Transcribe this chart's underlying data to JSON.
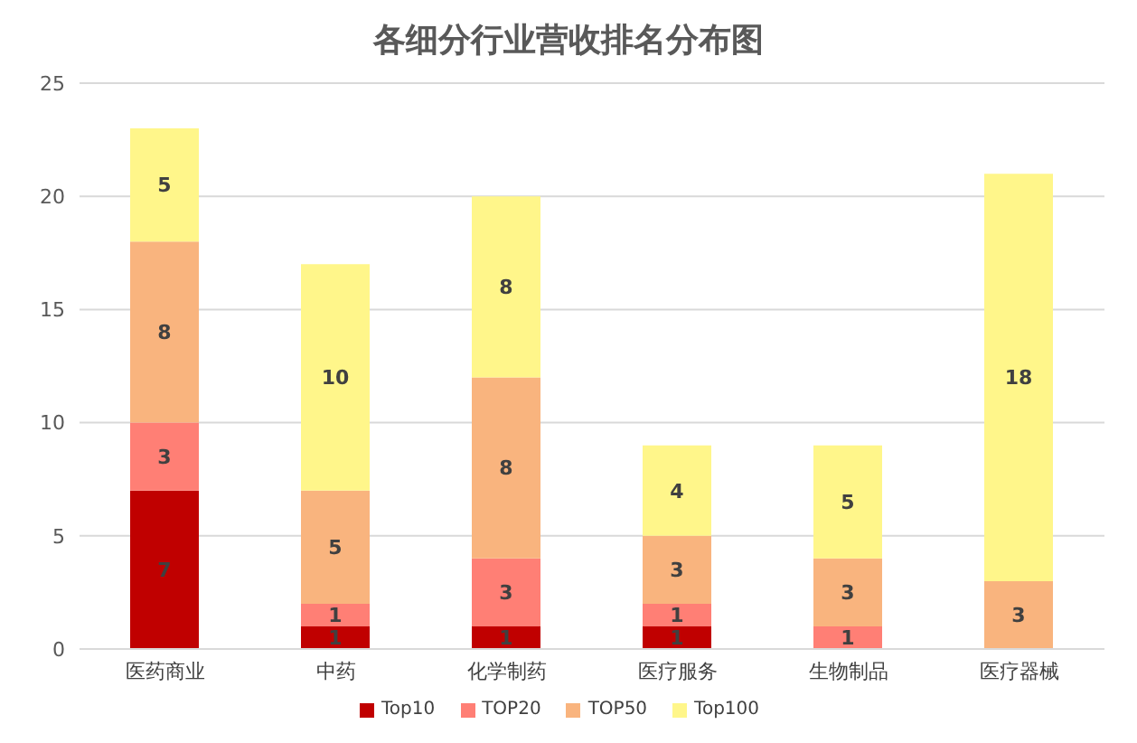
{
  "chart_data": {
    "type": "bar",
    "title": "各细分行业营收排名分布图",
    "categories": [
      "医药商业",
      "中药",
      "化学制药",
      "医疗服务",
      "生物制品",
      "医疗器械"
    ],
    "stacked": true,
    "series": [
      {
        "name": "Top10",
        "color": "#c00000",
        "values": [
          7,
          1,
          1,
          1,
          null,
          null
        ]
      },
      {
        "name": "TOP20",
        "color": "#ff7f75",
        "values": [
          3,
          1,
          3,
          1,
          1,
          null
        ]
      },
      {
        "name": "TOP50",
        "color": "#f9b47e",
        "values": [
          8,
          5,
          8,
          3,
          3,
          3
        ]
      },
      {
        "name": "Top100",
        "color": "#fff68a",
        "values": [
          5,
          10,
          8,
          4,
          5,
          18
        ]
      }
    ],
    "ylim": [
      0,
      25
    ],
    "yticks": [
      0,
      5,
      10,
      15,
      20,
      25
    ],
    "grid": "y",
    "legend": "bottom",
    "data_labels": true
  }
}
